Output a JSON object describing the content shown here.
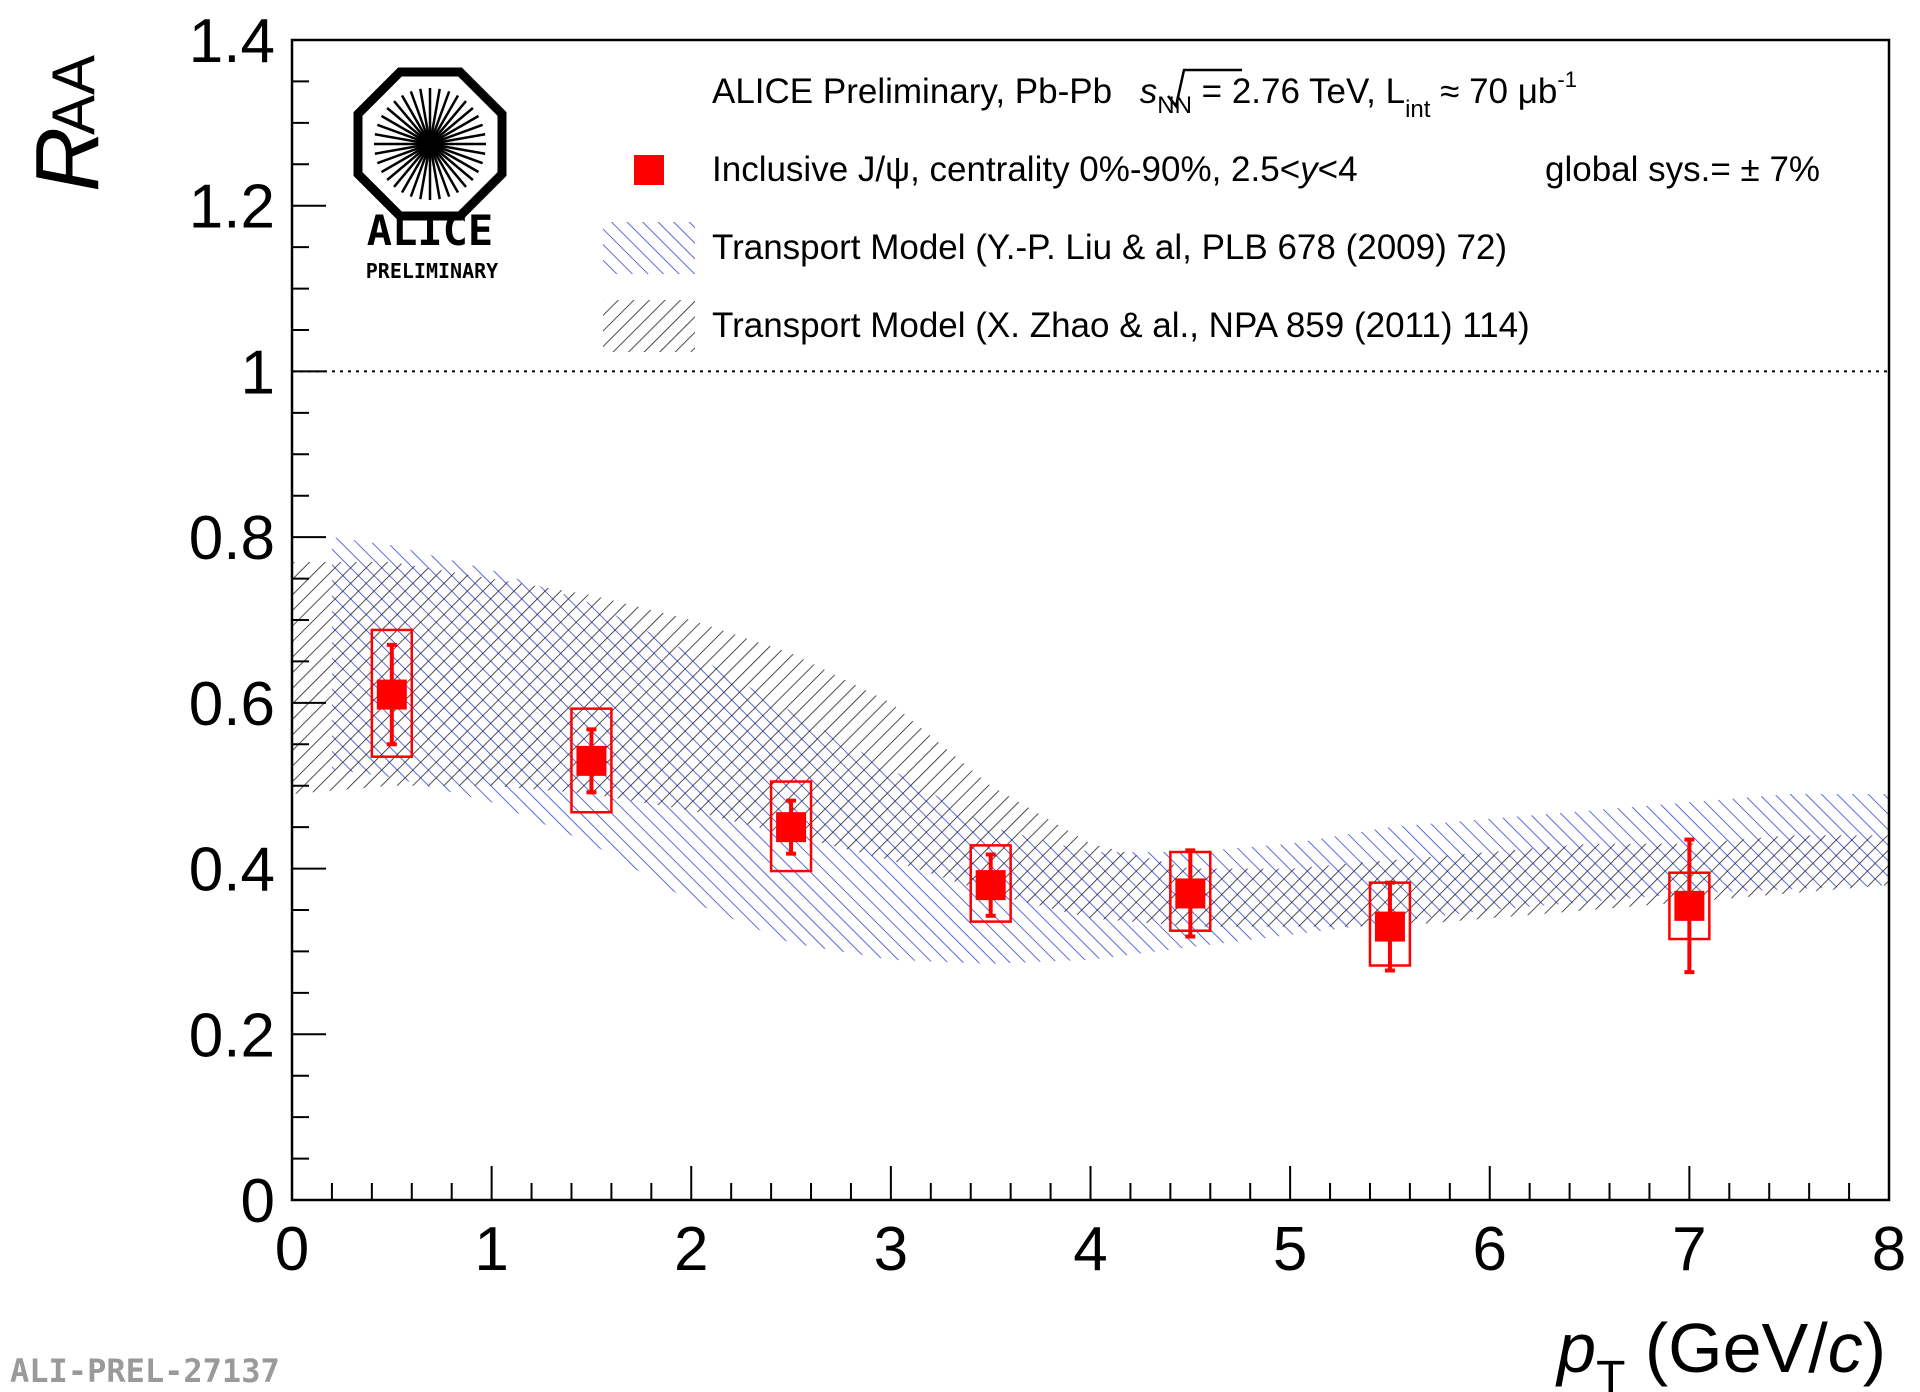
{
  "chart_data": {
    "type": "scatter",
    "title": "",
    "xlabel": "p_T (GeV/c)",
    "ylabel": "R_AA",
    "xlabel_parts": {
      "var": "p",
      "sub": "T",
      "rest_open": " (GeV/",
      "rest_var": "c",
      "rest_close": ")"
    },
    "ylabel_parts": {
      "var": "R",
      "sub": "AA"
    },
    "xlim": [
      0,
      8
    ],
    "ylim": [
      0,
      1.4
    ],
    "x_ticks": [
      "0",
      "1",
      "2",
      "3",
      "4",
      "5",
      "6",
      "7",
      "8"
    ],
    "y_ticks": [
      "0",
      "0.2",
      "0.4",
      "0.6",
      "0.8",
      "1",
      "1.2",
      "1.4"
    ],
    "reference_line": {
      "y": 1.0,
      "style": "dotted"
    },
    "grid": false,
    "legend_position": "top",
    "series": [
      {
        "name": "Inclusive J/ψ, centrality 0%-90%, 2.5<y<4",
        "kind": "points",
        "color": "#ff0000",
        "x": [
          0.5,
          1.5,
          2.5,
          3.5,
          4.5,
          5.5,
          7.0
        ],
        "y": [
          0.61,
          0.53,
          0.45,
          0.38,
          0.37,
          0.33,
          0.355
        ],
        "stat_err": [
          0.06,
          0.038,
          0.032,
          0.037,
          0.052,
          0.053,
          0.08
        ],
        "sys_box_low": [
          0.535,
          0.468,
          0.397,
          0.336,
          0.325,
          0.283,
          0.315
        ],
        "sys_box_high": [
          0.688,
          0.593,
          0.505,
          0.428,
          0.42,
          0.383,
          0.395
        ],
        "sys_box_half_width": 0.1
      },
      {
        "name": "Transport Model (Y.-P. Liu & al, PLB 678 (2009) 72)",
        "kind": "band",
        "color": "#3344dd",
        "hatch": "backslash",
        "x": [
          0.2,
          0.5,
          1.0,
          1.5,
          2.0,
          2.5,
          3.0,
          3.5,
          4.0,
          4.5,
          5.0,
          5.5,
          6.0,
          6.5,
          7.0,
          7.5,
          8.0
        ],
        "upper": [
          0.8,
          0.79,
          0.76,
          0.72,
          0.66,
          0.59,
          0.52,
          0.45,
          0.42,
          0.42,
          0.43,
          0.45,
          0.46,
          0.47,
          0.48,
          0.49,
          0.49
        ],
        "lower": [
          0.52,
          0.51,
          0.48,
          0.43,
          0.36,
          0.31,
          0.29,
          0.285,
          0.29,
          0.305,
          0.32,
          0.335,
          0.35,
          0.36,
          0.37,
          0.375,
          0.38
        ]
      },
      {
        "name": "Transport Model (X. Zhao & al., NPA 859 (2011) 114)",
        "kind": "band",
        "color": "#000000",
        "hatch": "slash",
        "x": [
          0.0,
          0.5,
          1.0,
          1.5,
          2.0,
          2.5,
          3.0,
          3.5,
          4.0,
          4.5,
          5.0,
          5.5,
          6.0,
          6.5,
          7.0,
          7.5,
          8.0
        ],
        "upper": [
          0.77,
          0.77,
          0.75,
          0.73,
          0.7,
          0.66,
          0.6,
          0.5,
          0.43,
          0.4,
          0.4,
          0.41,
          0.42,
          0.43,
          0.43,
          0.44,
          0.44
        ],
        "lower": [
          0.49,
          0.5,
          0.5,
          0.49,
          0.47,
          0.44,
          0.41,
          0.37,
          0.34,
          0.33,
          0.33,
          0.33,
          0.34,
          0.35,
          0.36,
          0.37,
          0.38
        ]
      }
    ],
    "legend_entries": [
      {
        "text": "Inclusive J/ψ, centrality 0%-90%, 2.5<y<4",
        "marker": "square"
      },
      {
        "text": "Transport Model (Y.-P. Liu & al, PLB 678 (2009) 72)",
        "marker": "hatch-blue"
      },
      {
        "text": "Transport Model (X. Zhao & al., NPA 859 (2011) 114)",
        "marker": "hatch-black"
      }
    ]
  },
  "annotations": {
    "header": "ALICE Preliminary, Pb-Pb √sNN = 2.76 TeV, Lint ≈ 70 μb⁻¹",
    "header_parts": {
      "prefix": "ALICE Preliminary, Pb-Pb ",
      "s": "s",
      "s_sub": "NN",
      "energy": " = 2.76 TeV, L",
      "lumi_sub": "int",
      "lumi": " ≈ 70 μb",
      "lumi_sup": "-1"
    },
    "jpsi_parts": {
      "a": "Inclusive J/",
      "psi": "ψ",
      "b": ", centrality 0%-90%, 2.5<",
      "y": "y",
      "c": "<4"
    },
    "global_sys": "global sys.= ± 7%",
    "logo_title": "ALICE",
    "logo_subtitle": "PRELIMINARY",
    "figure_id": "ALI-PREL-27137"
  }
}
